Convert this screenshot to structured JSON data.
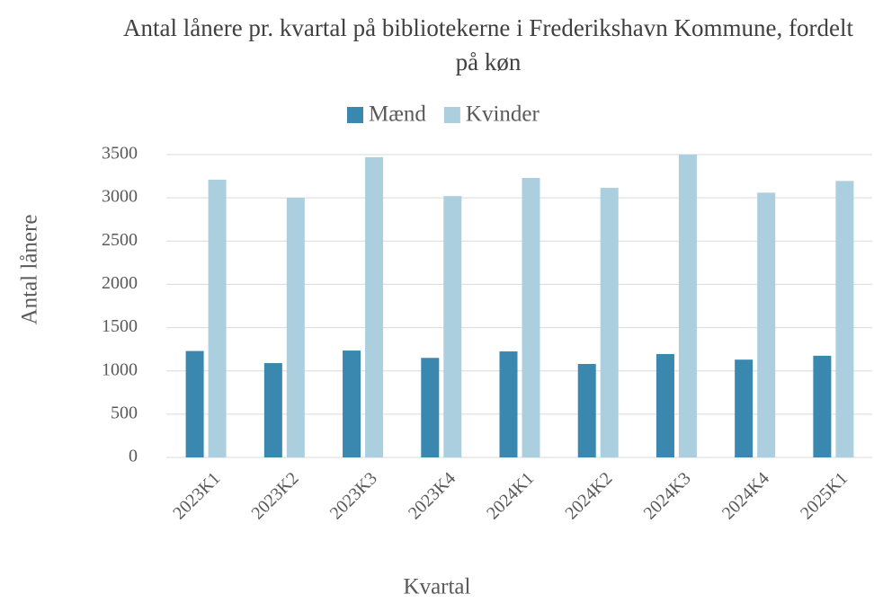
{
  "chart_data": {
    "type": "bar",
    "title": "Antal lånere pr. kvartal på bibliotekerne i Frederikshavn Kommune, fordelt på køn",
    "xlabel": "Kvartal",
    "ylabel": "Antal lånere",
    "categories": [
      "2023K1",
      "2023K2",
      "2023K3",
      "2023K4",
      "2024K1",
      "2024K2",
      "2024K3",
      "2024K4",
      "2025K1"
    ],
    "series": [
      {
        "name": "Mænd",
        "color": "#3a87b0",
        "values": [
          1230,
          1090,
          1235,
          1150,
          1225,
          1080,
          1195,
          1130,
          1175
        ]
      },
      {
        "name": "Kvinder",
        "color": "#abcfdf",
        "values": [
          3210,
          3000,
          3470,
          3020,
          3230,
          3115,
          3500,
          3060,
          3195
        ]
      }
    ],
    "ylim": [
      0,
      3500
    ],
    "yticks": [
      0,
      500,
      1000,
      1500,
      2000,
      2500,
      3000,
      3500
    ],
    "grid": true,
    "legend": "top"
  }
}
